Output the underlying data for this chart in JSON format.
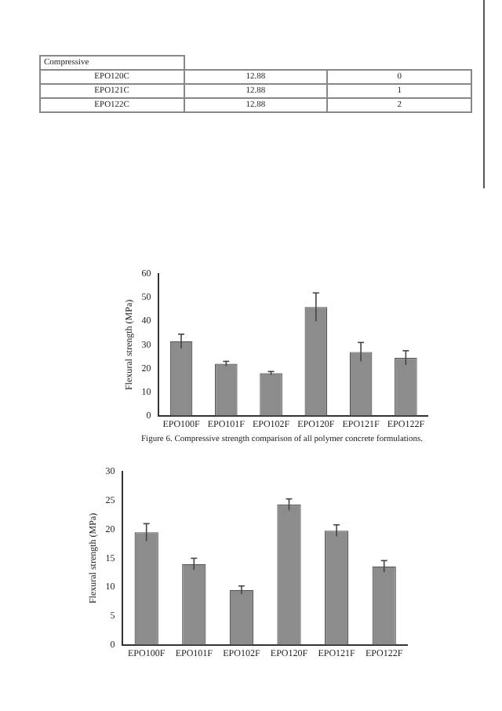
{
  "chart_data": [
    {
      "type": "other",
      "annotations": [
        "Compressive",
        "EPO120C",
        "12.88",
        "0",
        "EPO121C",
        "12.88",
        "1",
        "EPO122C",
        "12.88",
        "2"
      ]
    },
    {
      "type": "bar",
      "ylabel": "Flexural strength (MPa)",
      "categories": [
        "EPO100F",
        "EPO101F",
        "EPO102F",
        "EPO120F",
        "EPO121F",
        "EPO122F"
      ],
      "values": [
        31.5,
        22,
        18,
        46,
        27,
        24.5
      ],
      "errors": [
        3,
        1,
        0.7,
        6,
        4,
        3
      ],
      "color": "#8c8c8c",
      "ylim": [
        0,
        60
      ],
      "yticks": [
        0,
        10,
        20,
        30,
        40,
        50,
        60
      ],
      "grid": false,
      "annotations": [
        "Figure 6. Compressive strength comparison of all polymer concrete formulations."
      ]
    },
    {
      "type": "bar",
      "ylabel": "Flexural strength (MPa)",
      "categories": [
        "EPO100F",
        "EPO101F",
        "EPO102F",
        "EPO120F",
        "EPO121F",
        "EPO122F"
      ],
      "values": [
        19.5,
        14,
        9.5,
        24.3,
        19.8,
        13.6
      ],
      "errors": [
        1.5,
        1,
        0.7,
        1,
        1,
        1
      ],
      "color": "#8c8c8c",
      "ylim": [
        0,
        30
      ],
      "yticks": [
        0,
        5,
        10,
        15,
        20,
        25,
        30
      ],
      "grid": false
    }
  ]
}
